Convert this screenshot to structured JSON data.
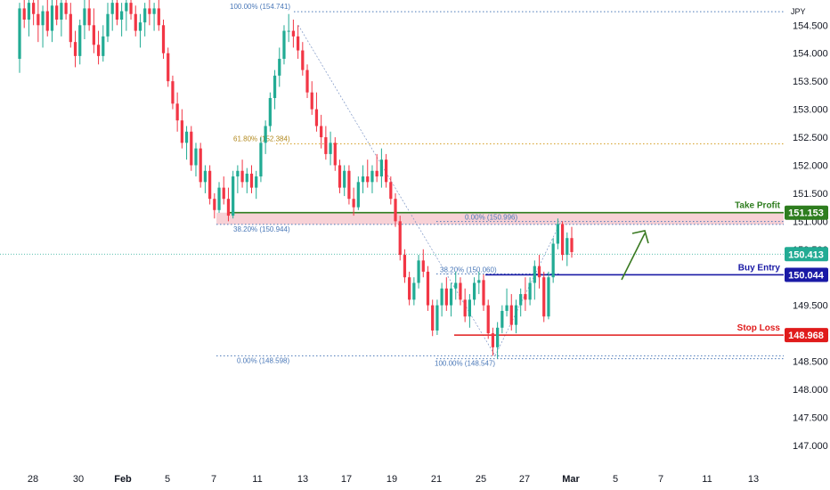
{
  "currency": "JPY",
  "colors": {
    "up": "#22ab94",
    "down": "#f23645",
    "take_profit": "#2e7d1f",
    "buy_entry": "#1a1aa6",
    "stop_loss": "#e01b1b",
    "current": "#22ab94",
    "fib": "#4a78b8",
    "fib_orange": "#d39b1a",
    "zone": "#f6c9cf"
  },
  "chart_data": {
    "type": "candlestick",
    "y_axis": {
      "range": [
        146.6,
        154.95
      ],
      "ticks": [
        "154.500",
        "154.000",
        "153.500",
        "153.000",
        "152.500",
        "152.000",
        "151.500",
        "151.000",
        "150.500",
        "149.500",
        "149.000",
        "148.500",
        "148.000",
        "147.500",
        "147.000"
      ]
    },
    "x_axis": {
      "labels": [
        "28",
        "30",
        "Feb",
        "5",
        "7",
        "11",
        "13",
        "17",
        "19",
        "21",
        "25",
        "27",
        "Mar",
        "5",
        "7",
        "11",
        "13"
      ],
      "bold_labels": [
        "Feb",
        "Mar"
      ]
    },
    "levels": [
      {
        "name": "Take Profit",
        "price": 151.153,
        "price_label": "151.153",
        "color": "take_profit"
      },
      {
        "name": "Buy Entry",
        "price": 150.044,
        "price_label": "150.044",
        "color": "buy_entry"
      },
      {
        "name": "Stop Loss",
        "price": 148.968,
        "price_label": "148.968",
        "color": "stop_loss"
      }
    ],
    "current_price": {
      "price": 150.413,
      "label": "150.413"
    },
    "fib_labels": [
      {
        "text": "100.00% (154.741)",
        "price": 154.741
      },
      {
        "text": "61.80% (152.384)",
        "price": 152.384
      },
      {
        "text": "38.20% (150.944)",
        "price": 150.944
      },
      {
        "text": "0.00% (148.598)",
        "price": 148.598
      },
      {
        "text": "0.00% (150.996)",
        "price": 150.996
      },
      {
        "text": "38.20% (150.060)",
        "price": 150.06
      },
      {
        "text": "100.00% (148.547)",
        "price": 148.547
      }
    ],
    "candles": [
      [
        153.9,
        154.9,
        153.65,
        154.8
      ],
      [
        154.8,
        155.0,
        154.45,
        154.6
      ],
      [
        154.6,
        154.95,
        154.3,
        154.9
      ],
      [
        154.9,
        155.0,
        154.5,
        154.7
      ],
      [
        154.7,
        155.0,
        154.2,
        154.5
      ],
      [
        154.5,
        154.85,
        154.1,
        154.75
      ],
      [
        154.75,
        155.0,
        154.3,
        154.4
      ],
      [
        154.4,
        154.95,
        154.2,
        154.85
      ],
      [
        154.85,
        155.0,
        154.5,
        154.6
      ],
      [
        154.6,
        154.95,
        154.3,
        154.9
      ],
      [
        154.9,
        155.0,
        154.6,
        154.7
      ],
      [
        154.7,
        154.9,
        154.1,
        154.2
      ],
      [
        154.2,
        154.4,
        153.75,
        153.95
      ],
      [
        153.95,
        154.6,
        153.8,
        154.5
      ],
      [
        154.5,
        154.95,
        154.25,
        154.8
      ],
      [
        154.8,
        155.0,
        154.4,
        154.5
      ],
      [
        154.5,
        154.8,
        154.0,
        154.15
      ],
      [
        154.15,
        154.4,
        153.8,
        153.95
      ],
      [
        153.95,
        154.5,
        153.85,
        154.3
      ],
      [
        154.3,
        154.9,
        154.2,
        154.7
      ],
      [
        154.7,
        155.0,
        154.4,
        154.9
      ],
      [
        154.9,
        155.0,
        154.5,
        154.6
      ],
      [
        154.6,
        154.9,
        154.3,
        154.75
      ],
      [
        154.75,
        155.0,
        154.4,
        154.9
      ],
      [
        154.9,
        155.0,
        154.6,
        154.7
      ],
      [
        154.7,
        154.85,
        154.3,
        154.4
      ],
      [
        154.4,
        154.7,
        154.1,
        154.55
      ],
      [
        154.55,
        154.9,
        154.3,
        154.8
      ],
      [
        154.8,
        155.0,
        154.5,
        154.7
      ],
      [
        154.7,
        154.9,
        154.4,
        154.8
      ],
      [
        154.8,
        154.95,
        154.4,
        154.5
      ],
      [
        154.5,
        154.6,
        153.9,
        154.0
      ],
      [
        154.0,
        154.1,
        153.4,
        153.5
      ],
      [
        153.5,
        153.6,
        153.0,
        153.1
      ],
      [
        153.1,
        153.3,
        152.6,
        152.8
      ],
      [
        152.8,
        153.0,
        152.3,
        152.4
      ],
      [
        152.4,
        152.7,
        152.1,
        152.6
      ],
      [
        152.6,
        152.7,
        151.9,
        152.0
      ],
      [
        152.0,
        152.4,
        151.8,
        152.3
      ],
      [
        152.3,
        152.4,
        151.6,
        151.7
      ],
      [
        151.7,
        152.0,
        151.5,
        151.9
      ],
      [
        151.9,
        152.0,
        151.3,
        151.4
      ],
      [
        151.4,
        151.5,
        151.05,
        151.2
      ],
      [
        151.2,
        151.7,
        151.15,
        151.6
      ],
      [
        151.6,
        151.8,
        151.3,
        151.4
      ],
      [
        151.4,
        151.6,
        151.0,
        151.1
      ],
      [
        151.1,
        151.9,
        151.05,
        151.8
      ],
      [
        151.8,
        152.0,
        151.5,
        151.9
      ],
      [
        151.9,
        152.1,
        151.6,
        151.7
      ],
      [
        151.7,
        151.95,
        151.5,
        151.85
      ],
      [
        151.85,
        152.0,
        151.5,
        151.6
      ],
      [
        151.6,
        151.9,
        151.4,
        151.8
      ],
      [
        151.8,
        152.5,
        151.7,
        152.4
      ],
      [
        152.4,
        152.8,
        152.2,
        152.7
      ],
      [
        152.7,
        153.3,
        152.6,
        153.2
      ],
      [
        153.2,
        153.7,
        153.0,
        153.6
      ],
      [
        153.6,
        154.1,
        153.4,
        153.9
      ],
      [
        153.9,
        154.5,
        153.8,
        154.4
      ],
      [
        154.4,
        154.7,
        154.2,
        154.4
      ],
      [
        154.4,
        154.6,
        154.1,
        154.3
      ],
      [
        154.3,
        154.5,
        153.9,
        154.05
      ],
      [
        154.05,
        154.2,
        153.6,
        153.7
      ],
      [
        153.7,
        153.8,
        153.2,
        153.3
      ],
      [
        153.3,
        153.5,
        152.9,
        153.0
      ],
      [
        153.0,
        153.3,
        152.6,
        152.7
      ],
      [
        152.7,
        152.9,
        152.3,
        152.5
      ],
      [
        152.5,
        152.7,
        152.1,
        152.2
      ],
      [
        152.2,
        152.6,
        152.0,
        152.4
      ],
      [
        152.4,
        152.5,
        151.9,
        152.0
      ],
      [
        152.0,
        152.1,
        151.5,
        151.6
      ],
      [
        151.6,
        152.0,
        151.45,
        151.9
      ],
      [
        151.9,
        152.0,
        151.3,
        151.4
      ],
      [
        151.4,
        151.6,
        151.1,
        151.25
      ],
      [
        151.25,
        151.8,
        151.2,
        151.7
      ],
      [
        151.7,
        152.0,
        151.5,
        151.8
      ],
      [
        151.8,
        152.1,
        151.6,
        151.7
      ],
      [
        151.7,
        152.0,
        151.5,
        151.9
      ],
      [
        151.9,
        152.2,
        151.7,
        151.8
      ],
      [
        151.8,
        152.3,
        151.6,
        152.1
      ],
      [
        152.1,
        152.2,
        151.6,
        151.7
      ],
      [
        151.7,
        151.8,
        151.3,
        151.4
      ],
      [
        151.4,
        151.5,
        150.9,
        151.0
      ],
      [
        151.0,
        151.1,
        150.3,
        150.4
      ],
      [
        150.4,
        150.5,
        149.9,
        150.0
      ],
      [
        150.0,
        150.1,
        149.5,
        149.6
      ],
      [
        149.6,
        150.0,
        149.5,
        149.9
      ],
      [
        149.9,
        150.4,
        149.8,
        150.3
      ],
      [
        150.3,
        150.5,
        150.0,
        150.1
      ],
      [
        150.1,
        150.2,
        149.4,
        149.5
      ],
      [
        149.5,
        149.6,
        148.95,
        149.05
      ],
      [
        149.05,
        149.6,
        148.97,
        149.5
      ],
      [
        149.5,
        149.9,
        149.3,
        149.8
      ],
      [
        149.8,
        150.0,
        149.4,
        149.5
      ],
      [
        149.5,
        149.9,
        149.3,
        149.8
      ],
      [
        149.8,
        150.1,
        149.6,
        149.9
      ],
      [
        149.9,
        150.0,
        149.5,
        149.6
      ],
      [
        149.6,
        149.8,
        149.2,
        149.3
      ],
      [
        149.3,
        149.7,
        149.1,
        149.6
      ],
      [
        149.6,
        150.0,
        149.5,
        149.9
      ],
      [
        149.9,
        150.1,
        149.7,
        149.95
      ],
      [
        149.95,
        150.05,
        149.4,
        149.5
      ],
      [
        149.5,
        149.6,
        148.9,
        149.0
      ],
      [
        149.0,
        149.1,
        148.6,
        148.75
      ],
      [
        148.75,
        149.2,
        148.55,
        149.1
      ],
      [
        149.1,
        149.5,
        149.0,
        149.4
      ],
      [
        149.4,
        149.8,
        149.3,
        149.5
      ],
      [
        149.5,
        149.7,
        149.05,
        149.15
      ],
      [
        149.15,
        149.6,
        149.0,
        149.5
      ],
      [
        149.5,
        149.8,
        149.3,
        149.7
      ],
      [
        149.7,
        150.0,
        149.4,
        149.6
      ],
      [
        149.6,
        150.0,
        149.5,
        149.9
      ],
      [
        149.9,
        150.3,
        149.6,
        150.2
      ],
      [
        150.2,
        150.4,
        149.8,
        150.0
      ],
      [
        150.0,
        150.1,
        149.2,
        149.3
      ],
      [
        149.3,
        150.1,
        149.25,
        150.0
      ],
      [
        150.0,
        150.7,
        149.9,
        150.6
      ],
      [
        150.6,
        151.05,
        150.5,
        150.95
      ],
      [
        150.95,
        151.0,
        150.3,
        150.4
      ],
      [
        150.4,
        150.8,
        150.2,
        150.7
      ],
      [
        150.7,
        150.9,
        150.35,
        150.45
      ]
    ]
  }
}
